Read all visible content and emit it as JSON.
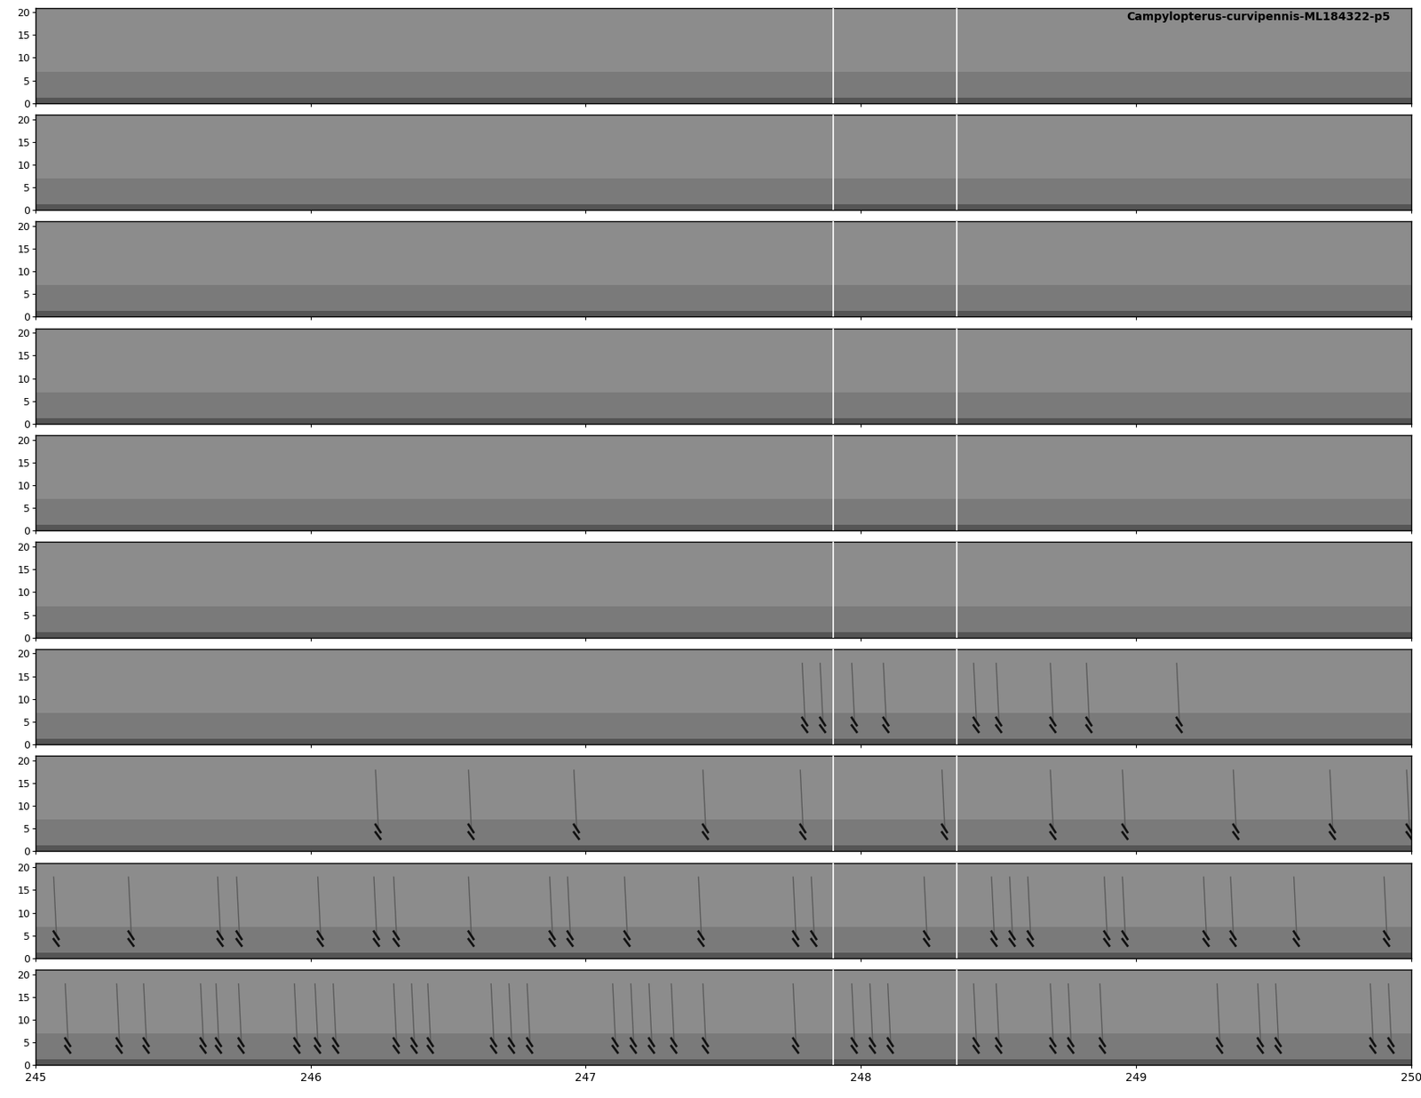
{
  "chart_data": {
    "type": "spectrogram",
    "title": "Campylopterus-curvipennis-ML184322-p5",
    "xlim": [
      245,
      250
    ],
    "xticks": [
      245,
      246,
      247,
      248,
      249,
      250
    ],
    "ylim": [
      0,
      21
    ],
    "yticks": [
      0,
      5,
      10,
      15,
      20
    ],
    "markers": [
      247.9,
      248.35
    ],
    "color": "#8c8c8c",
    "panels": [
      {
        "calls": []
      },
      {
        "calls": []
      },
      {
        "calls": []
      },
      {
        "calls": []
      },
      {
        "calls": []
      },
      {
        "calls": []
      },
      {
        "calls": [
          247.787,
          247.852,
          247.967,
          248.082,
          248.41,
          248.492,
          248.689,
          248.82,
          249.148
        ]
      },
      {
        "calls": [
          246.236,
          246.574,
          246.957,
          247.426,
          247.78,
          248.295,
          248.689,
          248.951,
          249.354,
          249.705,
          249.984
        ]
      },
      {
        "calls": [
          245.066,
          245.338,
          245.662,
          245.731,
          246.026,
          246.23,
          246.302,
          246.574,
          246.869,
          246.934,
          247.141,
          247.41,
          247.754,
          247.82,
          248.23,
          248.475,
          248.541,
          248.607,
          248.885,
          248.951,
          249.246,
          249.344,
          249.574,
          249.902
        ]
      },
      {
        "calls": [
          245.108,
          245.295,
          245.393,
          245.6,
          245.656,
          245.738,
          245.941,
          246.016,
          246.082,
          246.302,
          246.367,
          246.426,
          246.656,
          246.721,
          246.787,
          247.098,
          247.164,
          247.23,
          247.311,
          247.426,
          247.754,
          247.967,
          248.033,
          248.098,
          248.41,
          248.492,
          248.689,
          248.754,
          248.869,
          249.295,
          249.443,
          249.508,
          249.852,
          249.918
        ]
      }
    ]
  }
}
